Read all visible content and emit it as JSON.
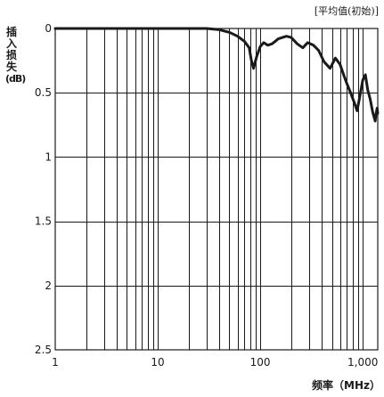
{
  "note": "[平均值(初始)]",
  "ylabel_chars": [
    "插",
    "入",
    "损",
    "失"
  ],
  "ylabel_unit": "(dB)",
  "xlabel": "频率（MHz）",
  "chart_data": {
    "type": "line",
    "xscale": "log",
    "xlim": [
      1,
      1400
    ],
    "ylim": [
      0,
      2.5
    ],
    "y_inverted": true,
    "grid": true,
    "xticks": [
      1,
      10,
      100,
      1000
    ],
    "xtick_labels": [
      "1",
      "10",
      "100",
      "1,000"
    ],
    "yticks": [
      0,
      0.5,
      1,
      1.5,
      2,
      2.5
    ],
    "ytick_labels": [
      "0",
      "0.5",
      "1",
      "1.5",
      "2",
      "2.5"
    ],
    "xlabel": "频率（MHz）",
    "ylabel": "插入损失(dB)",
    "series": [
      {
        "x": [
          1,
          5,
          10,
          20,
          30,
          40,
          50,
          60,
          70,
          78,
          82,
          86,
          92,
          100,
          108,
          118,
          130,
          140,
          150,
          165,
          180,
          200,
          230,
          260,
          290,
          330,
          370,
          420,
          480,
          540,
          600,
          650,
          700,
          760,
          820,
          880,
          940,
          1000,
          1060,
          1120,
          1180,
          1250,
          1320,
          1350,
          1380,
          1400
        ],
        "y": [
          0.0,
          0.0,
          0.0,
          0.0,
          0.0,
          0.01,
          0.03,
          0.06,
          0.1,
          0.15,
          0.25,
          0.31,
          0.22,
          0.14,
          0.11,
          0.13,
          0.12,
          0.1,
          0.08,
          0.07,
          0.06,
          0.07,
          0.12,
          0.15,
          0.11,
          0.13,
          0.17,
          0.26,
          0.31,
          0.23,
          0.28,
          0.36,
          0.43,
          0.5,
          0.57,
          0.64,
          0.52,
          0.4,
          0.36,
          0.48,
          0.55,
          0.65,
          0.72,
          0.66,
          0.62,
          0.66
        ]
      }
    ]
  }
}
